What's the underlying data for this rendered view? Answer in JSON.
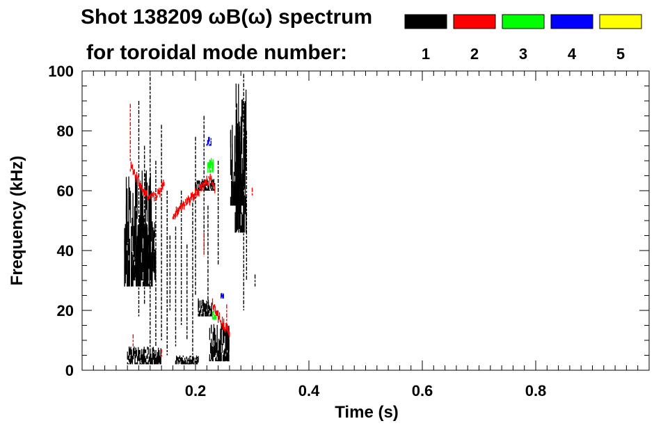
{
  "chart_data": {
    "type": "heatmap",
    "title_line1": "Shot 138209 ωB(ω) spectrum",
    "title_line2": "for toroidal mode number:",
    "xlabel": "Time (s)",
    "ylabel": "Frequency (kHz)",
    "xlim": [
      0.0,
      1.0
    ],
    "ylim": [
      0,
      100
    ],
    "x_ticks": [
      0.2,
      0.4,
      0.6,
      0.8
    ],
    "x_tick_labels": [
      "0.2",
      "0.4",
      "0.6",
      "0.8"
    ],
    "y_ticks": [
      0,
      20,
      40,
      60,
      80,
      100
    ],
    "y_tick_labels": [
      "0",
      "20",
      "40",
      "60",
      "80",
      "100"
    ],
    "grid": false,
    "legend": {
      "placement": "top-right",
      "entries": [
        {
          "label": "1",
          "color": "#000000"
        },
        {
          "label": "2",
          "color": "#ff0000"
        },
        {
          "label": "3",
          "color": "#00ff00"
        },
        {
          "label": "4",
          "color": "#0000ff"
        },
        {
          "label": "5",
          "color": "#ffff00"
        }
      ]
    },
    "series": [
      {
        "mode": "1",
        "color": "#000000",
        "regions": [
          {
            "t": [
              0.075,
              0.125
            ],
            "f": [
              28,
              67
            ]
          },
          {
            "t": [
              0.09,
              0.13
            ],
            "f": [
              30,
              50
            ]
          },
          {
            "t": [
              0.08,
              0.14
            ],
            "f": [
              2,
              8
            ]
          },
          {
            "t": [
              0.205,
              0.23
            ],
            "f": [
              18,
              24
            ]
          },
          {
            "t": [
              0.225,
              0.26
            ],
            "f": [
              3,
              16
            ]
          },
          {
            "t": [
              0.25,
              0.26
            ],
            "f": [
              3,
              8
            ]
          },
          {
            "t": [
              0.262,
              0.285
            ],
            "f": [
              55,
              82
            ]
          },
          {
            "t": [
              0.27,
              0.29
            ],
            "f": [
              46,
              96
            ]
          },
          {
            "t": [
              0.2,
              0.235
            ],
            "f": [
              60,
              64
            ]
          },
          {
            "t": [
              0.165,
              0.205
            ],
            "f": [
              2,
              5
            ]
          }
        ],
        "lines": [
          {
            "t": 0.1,
            "f": [
              18,
              90
            ]
          },
          {
            "t": 0.11,
            "f": [
              22,
              75
            ]
          },
          {
            "t": 0.12,
            "f": [
              5,
              98
            ]
          },
          {
            "t": 0.13,
            "f": [
              8,
              70
            ]
          },
          {
            "t": 0.14,
            "f": [
              10,
              82
            ]
          },
          {
            "t": 0.15,
            "f": [
              5,
              60
            ]
          },
          {
            "t": 0.155,
            "f": [
              20,
              45
            ]
          },
          {
            "t": 0.165,
            "f": [
              8,
              48
            ]
          },
          {
            "t": 0.175,
            "f": [
              15,
              60
            ]
          },
          {
            "t": 0.185,
            "f": [
              10,
              42
            ]
          },
          {
            "t": 0.195,
            "f": [
              2,
              56
            ]
          },
          {
            "t": 0.2,
            "f": [
              25,
              78
            ]
          },
          {
            "t": 0.215,
            "f": [
              40,
              85
            ]
          },
          {
            "t": 0.222,
            "f": [
              20,
              55
            ]
          },
          {
            "t": 0.24,
            "f": [
              35,
              70
            ]
          },
          {
            "t": 0.285,
            "f": [
              20,
              99
            ]
          },
          {
            "t": 0.29,
            "f": [
              30,
              80
            ]
          },
          {
            "t": 0.305,
            "f": [
              28,
              32
            ]
          }
        ]
      },
      {
        "mode": "2",
        "color": "#ff0000",
        "curves": [
          [
            [
              0.085,
              68
            ],
            [
              0.1,
              63
            ],
            [
              0.115,
              58
            ],
            [
              0.13,
              58
            ],
            [
              0.145,
              62
            ]
          ],
          [
            [
              0.16,
              52
            ],
            [
              0.18,
              55
            ],
            [
              0.2,
              59
            ],
            [
              0.215,
              62
            ],
            [
              0.228,
              64
            ],
            [
              0.235,
              60
            ]
          ],
          [
            [
              0.23,
              22
            ],
            [
              0.24,
              18
            ],
            [
              0.25,
              15
            ],
            [
              0.26,
              12
            ]
          ]
        ],
        "lines": [
          {
            "t": 0.085,
            "f": [
              70,
              89
            ]
          },
          {
            "t": 0.09,
            "f": [
              8,
              12
            ]
          },
          {
            "t": 0.215,
            "f": [
              38,
              46
            ]
          },
          {
            "t": 0.255,
            "f": [
              15,
              22
            ]
          },
          {
            "t": 0.3,
            "f": [
              58,
              61
            ]
          },
          {
            "t": 0.14,
            "f": [
              4,
              7
            ]
          }
        ]
      },
      {
        "mode": "3",
        "color": "#00ff00",
        "regions": [
          {
            "t": [
              0.222,
              0.232
            ],
            "f": [
              66,
              71
            ]
          },
          {
            "t": [
              0.23,
              0.236
            ],
            "f": [
              17,
              20
            ]
          }
        ]
      },
      {
        "mode": "4",
        "color": "#0000ff",
        "regions": [
          {
            "t": [
              0.22,
              0.228
            ],
            "f": [
              75,
              78
            ]
          },
          {
            "t": [
              0.245,
              0.25
            ],
            "f": [
              24,
              26
            ]
          }
        ]
      },
      {
        "mode": "5",
        "color": "#ffff00",
        "regions": []
      }
    ]
  }
}
